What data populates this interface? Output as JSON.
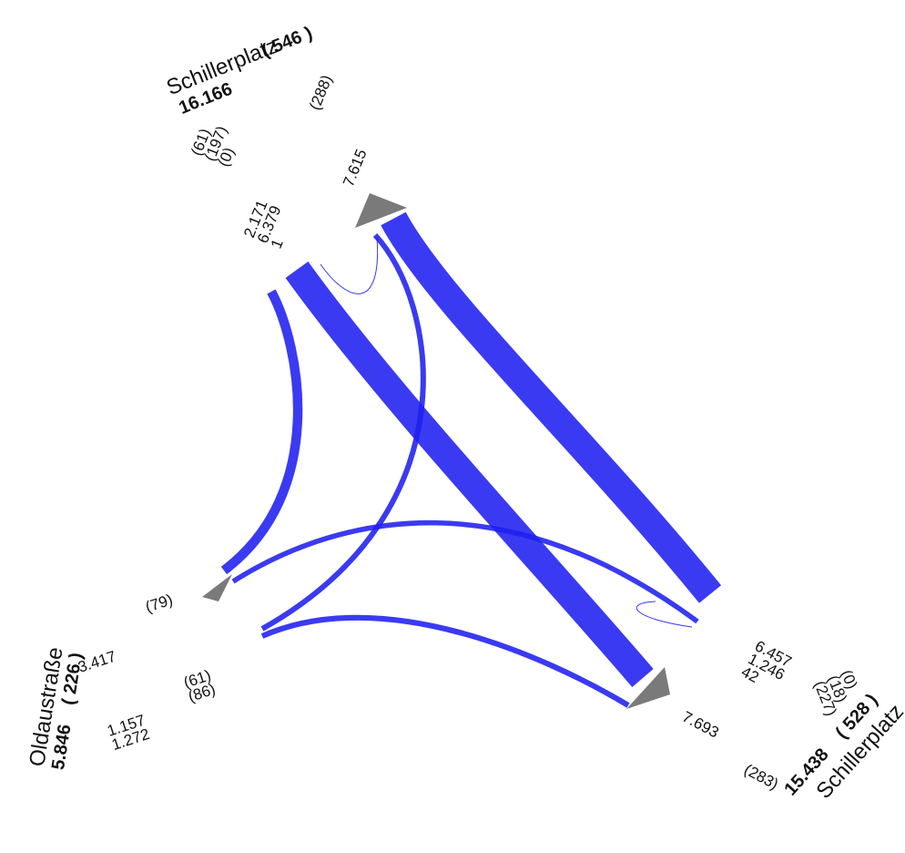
{
  "colors": {
    "flow": "#1f1ff0",
    "arrow": "#7a7a7a"
  },
  "arms": {
    "north": {
      "name": "Schillerplatz",
      "total": "16.166",
      "heavy": "( 546 )",
      "outflows": [
        "2.171",
        "6.379",
        "1"
      ],
      "outflows_heavy": [
        "(61)",
        "(197)",
        "(0)"
      ],
      "inflow": "7.615",
      "inflow_heavy": "(288)"
    },
    "west": {
      "name": "Oldaustraße",
      "total": "5.846",
      "heavy": "( 226 )",
      "inflow": "3.417",
      "inflow_heavy": "(79)",
      "outflows": [
        "1.157",
        "1.272"
      ],
      "outflows_heavy": [
        "(61)",
        "(86)"
      ]
    },
    "south": {
      "name": "Schillerplatz",
      "total": "15.438",
      "heavy": "( 528 )",
      "outflows": [
        "6.457",
        "1.246",
        "42"
      ],
      "outflows_heavy": [
        "(227)",
        "(18)",
        "(0)"
      ],
      "inflow": "7.693",
      "inflow_heavy": "(283)"
    }
  }
}
